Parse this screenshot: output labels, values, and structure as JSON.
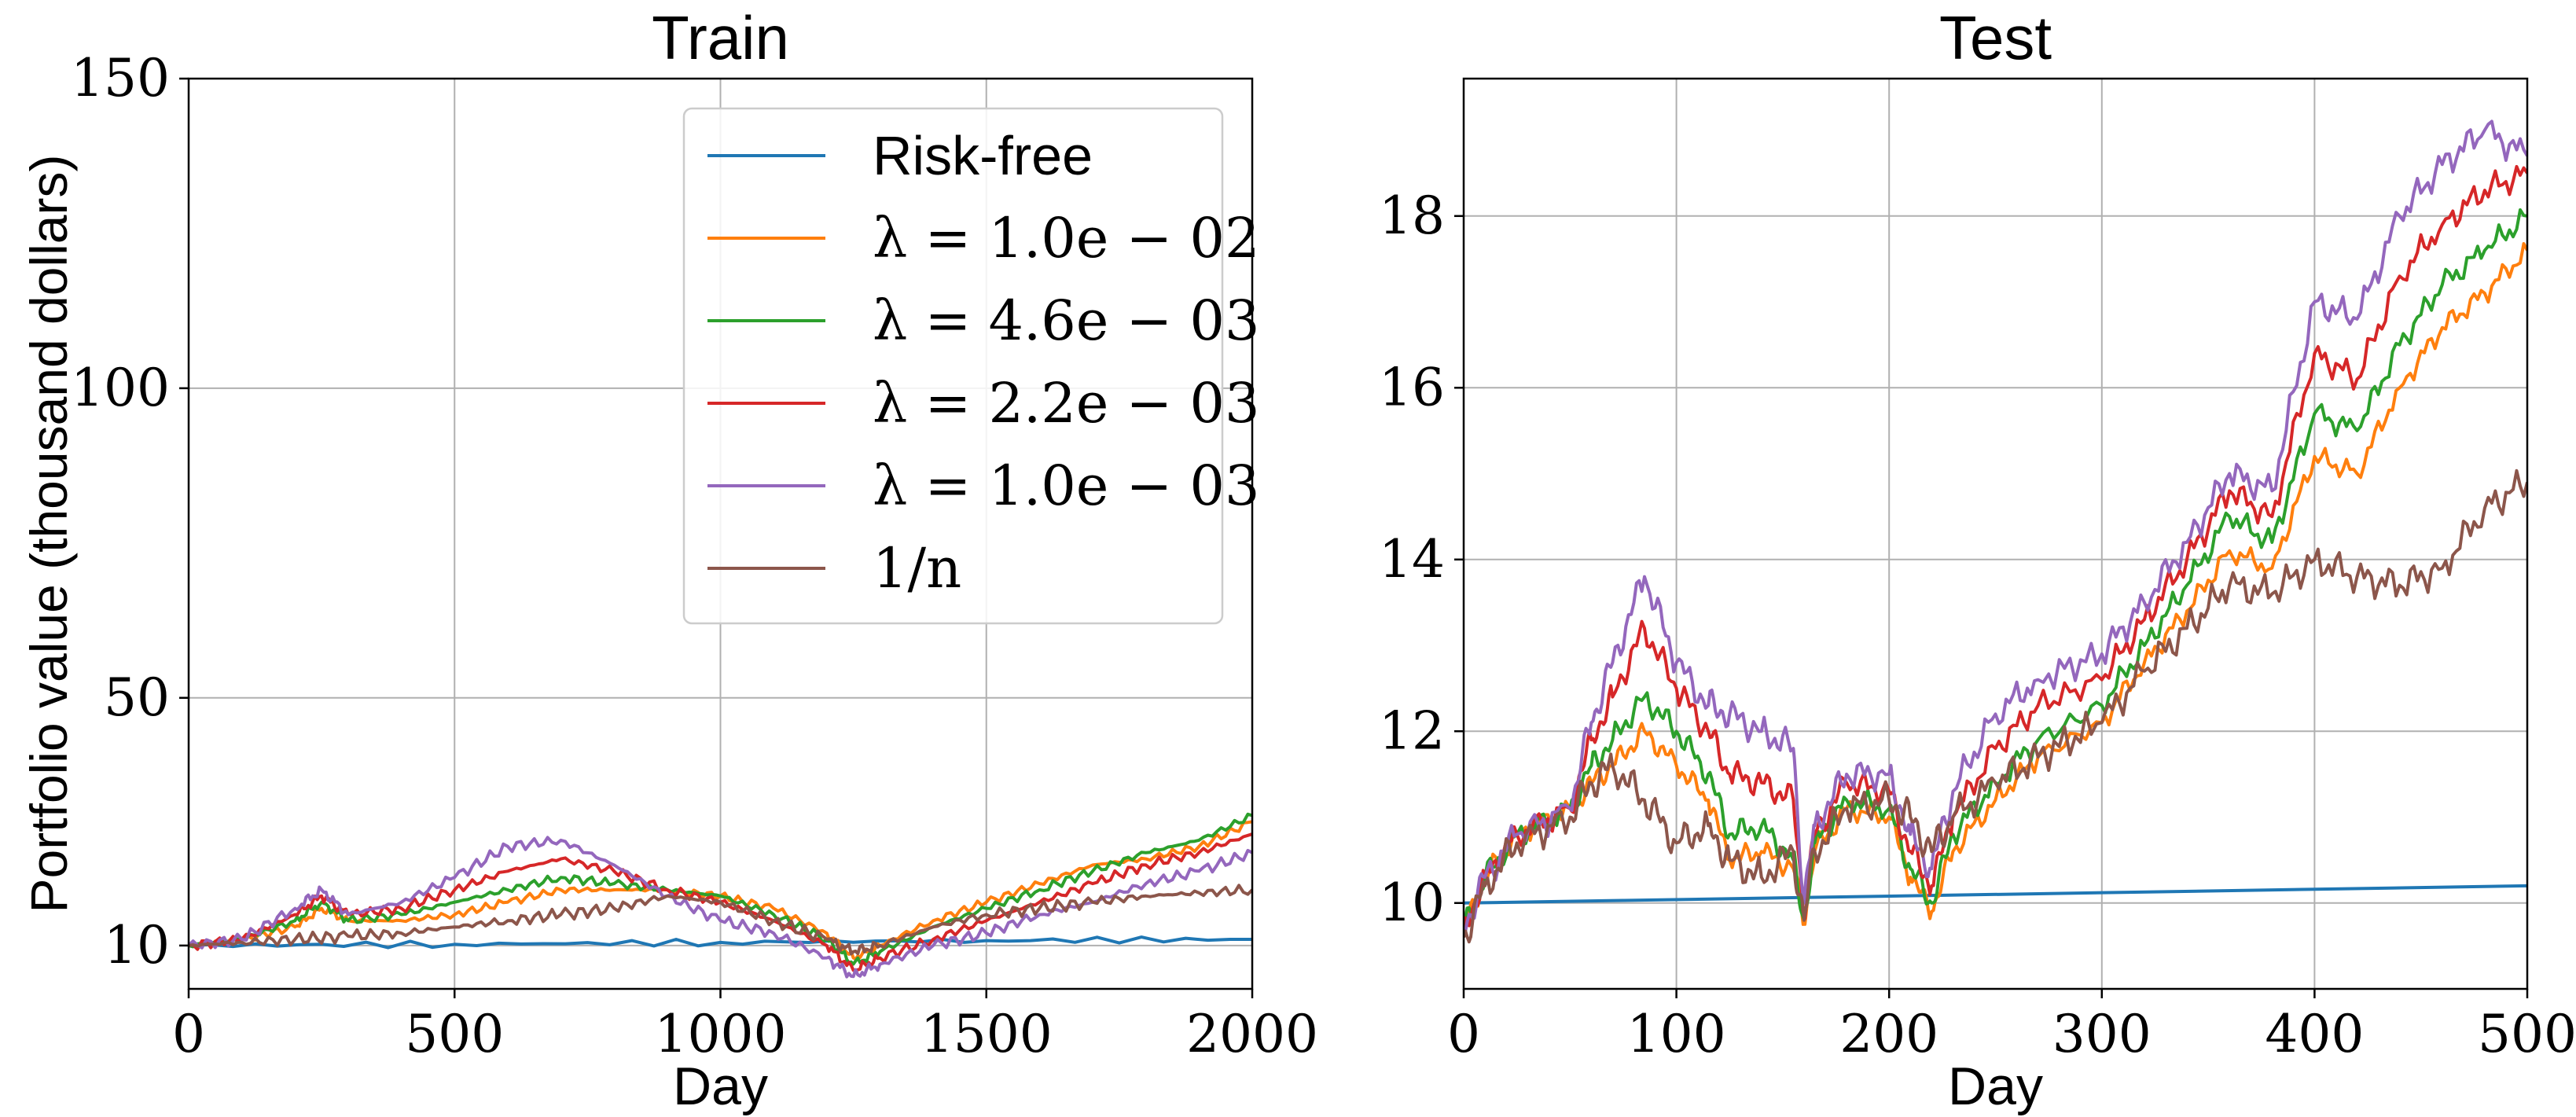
{
  "chart_data": [
    {
      "type": "line",
      "title": "Train",
      "xlabel": "Day",
      "ylabel": "Portfolio value (thousand dollars)",
      "xlim": [
        0,
        2000
      ],
      "ylim": [
        3,
        150
      ],
      "x_ticks": [
        0,
        500,
        1000,
        1500,
        2000
      ],
      "y_ticks": [
        10,
        50,
        100,
        150
      ],
      "grid": true,
      "legend": "top-right",
      "series": [
        {
          "name": "Risk-free",
          "color": "#1f77b4",
          "x": [
            0,
            500,
            1000,
            1500,
            2000
          ],
          "values": [
            10,
            10.2,
            10.5,
            10.8,
            11.0
          ]
        },
        {
          "name": "λ = 1.0e − 02",
          "color": "#ff7f0e",
          "x": [
            0,
            100,
            200,
            250,
            300,
            400,
            500,
            600,
            700,
            800,
            900,
            1000,
            1100,
            1200,
            1250,
            1300,
            1400,
            1500,
            1600,
            1700,
            1800,
            1900,
            2000
          ],
          "values": [
            10,
            11,
            13,
            16,
            14,
            14,
            15,
            17,
            19,
            19,
            19,
            18,
            16,
            12,
            8,
            10,
            14,
            17,
            20,
            23,
            24,
            26,
            30
          ]
        },
        {
          "name": "λ = 4.6e − 03",
          "color": "#2ca02c",
          "x": [
            0,
            100,
            200,
            250,
            300,
            400,
            500,
            600,
            700,
            800,
            900,
            1000,
            1100,
            1200,
            1250,
            1300,
            1400,
            1500,
            1600,
            1700,
            1800,
            1900,
            2000
          ],
          "values": [
            10,
            11,
            14,
            17,
            14,
            15,
            17,
            19,
            21,
            20,
            19,
            18,
            15,
            11,
            7,
            9,
            13,
            16,
            19,
            22,
            25,
            27,
            31
          ]
        },
        {
          "name": "λ = 2.2e − 03",
          "color": "#d62728",
          "x": [
            0,
            100,
            200,
            250,
            300,
            400,
            500,
            600,
            700,
            800,
            900,
            1000,
            1100,
            1200,
            1250,
            1300,
            1400,
            1500,
            1600,
            1700,
            1800,
            1900,
            2000
          ],
          "values": [
            10,
            11,
            15,
            18,
            15,
            16,
            19,
            22,
            24,
            22,
            19,
            17,
            14,
            10,
            6,
            8,
            11,
            14,
            17,
            20,
            23,
            25,
            28
          ]
        },
        {
          "name": "λ = 1.0e − 03",
          "color": "#9467bd",
          "x": [
            0,
            100,
            200,
            250,
            300,
            400,
            500,
            600,
            700,
            800,
            900,
            1000,
            1100,
            1200,
            1250,
            1300,
            1400,
            1500,
            1600,
            1700,
            1800,
            1900,
            2000
          ],
          "values": [
            10,
            11,
            16,
            19,
            15,
            17,
            21,
            26,
            27,
            23,
            18,
            14,
            12,
            8,
            5,
            7,
            10,
            12,
            15,
            17,
            20,
            22,
            25
          ]
        },
        {
          "name": "1/n",
          "color": "#8c564b",
          "x": [
            0,
            100,
            200,
            300,
            400,
            500,
            600,
            700,
            800,
            900,
            1000,
            1100,
            1200,
            1250,
            1300,
            1400,
            1500,
            1600,
            1700,
            1800,
            1900,
            2000
          ],
          "values": [
            10,
            10.5,
            11,
            11.5,
            12,
            13,
            14,
            15,
            16,
            18,
            17,
            14,
            11,
            9,
            10,
            13,
            15,
            16,
            17,
            18,
            18.5,
            19
          ]
        }
      ]
    },
    {
      "type": "line",
      "title": "Test",
      "xlabel": "Day",
      "ylabel": "",
      "xlim": [
        0,
        500
      ],
      "ylim": [
        9,
        19.6
      ],
      "x_ticks": [
        0,
        100,
        200,
        300,
        400,
        500
      ],
      "y_ticks": [
        10,
        12,
        14,
        16,
        18
      ],
      "grid": true,
      "series": [
        {
          "name": "Risk-free",
          "color": "#1f77b4",
          "x": [
            0,
            500
          ],
          "values": [
            10.0,
            10.2
          ]
        },
        {
          "name": "λ = 1.0e − 02",
          "color": "#ff7f0e",
          "x": [
            0,
            10,
            25,
            50,
            60,
            70,
            85,
            100,
            115,
            125,
            140,
            155,
            160,
            165,
            180,
            200,
            210,
            220,
            230,
            250,
            270,
            300,
            320,
            340,
            360,
            380,
            400,
            420,
            440,
            460,
            480,
            500
          ],
          "values": [
            9.7,
            10.3,
            10.8,
            11.1,
            11.4,
            11.6,
            12.0,
            11.6,
            11.2,
            10.5,
            10.6,
            10.4,
            9.8,
            10.6,
            11.1,
            11.0,
            10.3,
            9.9,
            10.6,
            11.2,
            11.7,
            12.1,
            12.8,
            13.4,
            14.1,
            13.9,
            15.2,
            15.0,
            16.0,
            16.7,
            17.1,
            17.6
          ]
        },
        {
          "name": "λ = 4.6e − 03",
          "color": "#2ca02c",
          "x": [
            0,
            10,
            25,
            50,
            60,
            70,
            85,
            100,
            115,
            125,
            140,
            155,
            160,
            165,
            180,
            200,
            210,
            220,
            230,
            250,
            270,
            300,
            320,
            340,
            360,
            380,
            400,
            420,
            440,
            460,
            480,
            500
          ],
          "values": [
            9.7,
            10.3,
            10.8,
            11.1,
            11.6,
            11.9,
            12.4,
            12.0,
            11.5,
            10.8,
            10.9,
            10.5,
            9.8,
            10.7,
            11.2,
            11.1,
            10.4,
            10.0,
            10.8,
            11.4,
            11.9,
            12.3,
            13.0,
            13.7,
            14.5,
            14.2,
            15.7,
            15.5,
            16.5,
            17.2,
            17.6,
            18.0
          ]
        },
        {
          "name": "λ = 2.2e − 03",
          "color": "#d62728",
          "x": [
            0,
            10,
            25,
            50,
            60,
            70,
            85,
            100,
            115,
            125,
            140,
            155,
            160,
            165,
            180,
            200,
            210,
            220,
            230,
            250,
            270,
            300,
            320,
            340,
            360,
            380,
            400,
            420,
            440,
            460,
            480,
            500
          ],
          "values": [
            9.7,
            10.3,
            10.8,
            11.1,
            11.9,
            12.4,
            13.2,
            12.5,
            12.0,
            11.5,
            11.4,
            11.2,
            9.9,
            10.8,
            11.4,
            11.3,
            10.6,
            10.2,
            11.0,
            11.8,
            12.3,
            12.6,
            13.3,
            14.0,
            14.8,
            14.5,
            16.4,
            16.1,
            17.3,
            17.9,
            18.3,
            18.5
          ]
        },
        {
          "name": "λ = 1.0e − 03",
          "color": "#9467bd",
          "x": [
            0,
            10,
            25,
            50,
            60,
            70,
            85,
            100,
            115,
            125,
            140,
            155,
            160,
            165,
            180,
            200,
            210,
            220,
            230,
            250,
            270,
            300,
            320,
            340,
            360,
            380,
            400,
            420,
            440,
            460,
            480,
            500
          ],
          "values": [
            9.7,
            10.3,
            10.8,
            11.1,
            12.1,
            12.8,
            13.8,
            12.8,
            12.3,
            12.2,
            12.0,
            11.8,
            10.0,
            10.9,
            11.5,
            11.5,
            10.8,
            10.4,
            11.3,
            12.2,
            12.6,
            12.9,
            13.5,
            14.2,
            15.0,
            14.8,
            17.0,
            16.8,
            18.0,
            18.6,
            19.0,
            18.7
          ]
        },
        {
          "name": "1/n",
          "color": "#8c564b",
          "x": [
            0,
            10,
            25,
            50,
            60,
            70,
            85,
            100,
            115,
            125,
            140,
            155,
            160,
            165,
            180,
            200,
            210,
            220,
            230,
            250,
            270,
            300,
            320,
            340,
            360,
            380,
            400,
            420,
            440,
            460,
            480,
            500
          ],
          "values": [
            9.6,
            10.2,
            10.7,
            11.0,
            11.4,
            11.6,
            11.2,
            10.7,
            10.9,
            10.5,
            10.3,
            10.6,
            9.8,
            10.6,
            11.1,
            11.2,
            11.0,
            10.6,
            11.0,
            11.4,
            11.7,
            12.1,
            12.7,
            13.2,
            13.7,
            13.6,
            14.0,
            13.8,
            13.7,
            13.9,
            14.6,
            14.9
          ]
        }
      ]
    }
  ]
}
